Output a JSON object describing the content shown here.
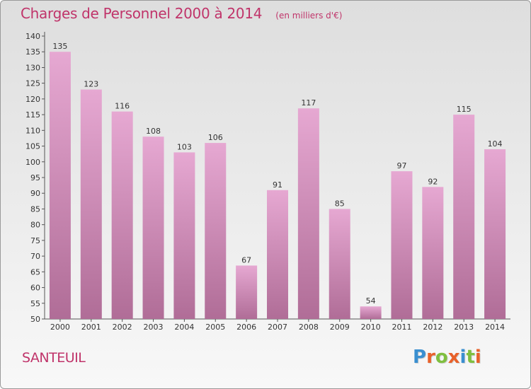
{
  "title": "Charges de Personnel 2000 à 2014",
  "subtitle": "(en milliers d'€)",
  "commune": "SANTEUIL",
  "logo": {
    "text": "Proxiti",
    "colors": [
      "#3a8fd0",
      "#e8612a",
      "#7fbf3f",
      "#e8612a",
      "#3a8fd0",
      "#7fbf3f",
      "#e8612a"
    ]
  },
  "colors": {
    "bar_top": "#e6a8d2",
    "bar_bottom": "#b06d97",
    "title": "#c0346a"
  },
  "chart_data": {
    "type": "bar",
    "categories": [
      "2000",
      "2001",
      "2002",
      "2003",
      "2004",
      "2005",
      "2006",
      "2007",
      "2008",
      "2009",
      "2010",
      "2011",
      "2012",
      "2013",
      "2014"
    ],
    "values": [
      135,
      123,
      116,
      108,
      103,
      106,
      67,
      91,
      117,
      85,
      54,
      97,
      92,
      115,
      104
    ],
    "ylim": [
      50,
      140
    ],
    "yticks": [
      50,
      55,
      60,
      65,
      70,
      75,
      80,
      85,
      90,
      95,
      100,
      105,
      110,
      115,
      120,
      125,
      130,
      135,
      140
    ],
    "grid": false
  }
}
